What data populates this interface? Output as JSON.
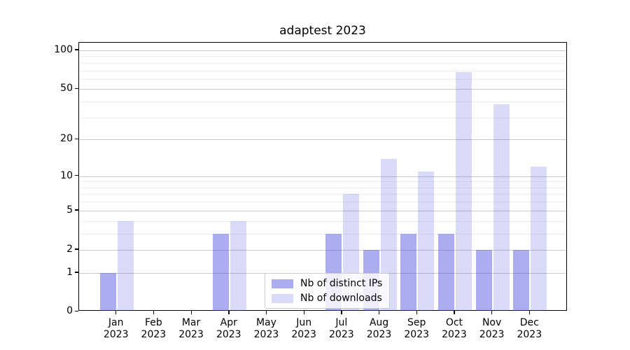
{
  "chart_data": {
    "type": "bar",
    "title": "adaptest 2023",
    "categories": [
      "Jan 2023",
      "Feb 2023",
      "Mar 2023",
      "Apr 2023",
      "May 2023",
      "Jun 2023",
      "Jul 2023",
      "Aug 2023",
      "Sep 2023",
      "Oct 2023",
      "Nov 2023",
      "Dec 2023"
    ],
    "series": [
      {
        "name": "Nb of distinct IPs",
        "color": "rgba(70,70,225,0.45)",
        "color_hex": "#a8a8f0",
        "values": [
          1,
          0,
          0,
          3,
          0,
          0,
          3,
          2,
          3,
          3,
          2,
          2
        ]
      },
      {
        "name": "Nb of downloads",
        "color": "rgba(70,70,225,0.2)",
        "color_hex": "#dbdbf8",
        "values": [
          4,
          0,
          0,
          4,
          0,
          0,
          7,
          14,
          11,
          68,
          38,
          12
        ]
      }
    ],
    "yscale": "log(1+x)",
    "ylim": [
      0,
      115
    ],
    "yticks": [
      0,
      1,
      2,
      5,
      10,
      20,
      50,
      100
    ],
    "minor_yticks": [
      3,
      4,
      6,
      7,
      8,
      9,
      30,
      40,
      60,
      70,
      80,
      90
    ],
    "grid": "horizontal",
    "legend_position": "lower center"
  },
  "colors": {
    "background": "#ffffff",
    "axis": "#000000",
    "major_grid": "#c9c9c9",
    "minor_grid": "#ededed",
    "legend_border": "#cccccc",
    "text": "#000000"
  }
}
